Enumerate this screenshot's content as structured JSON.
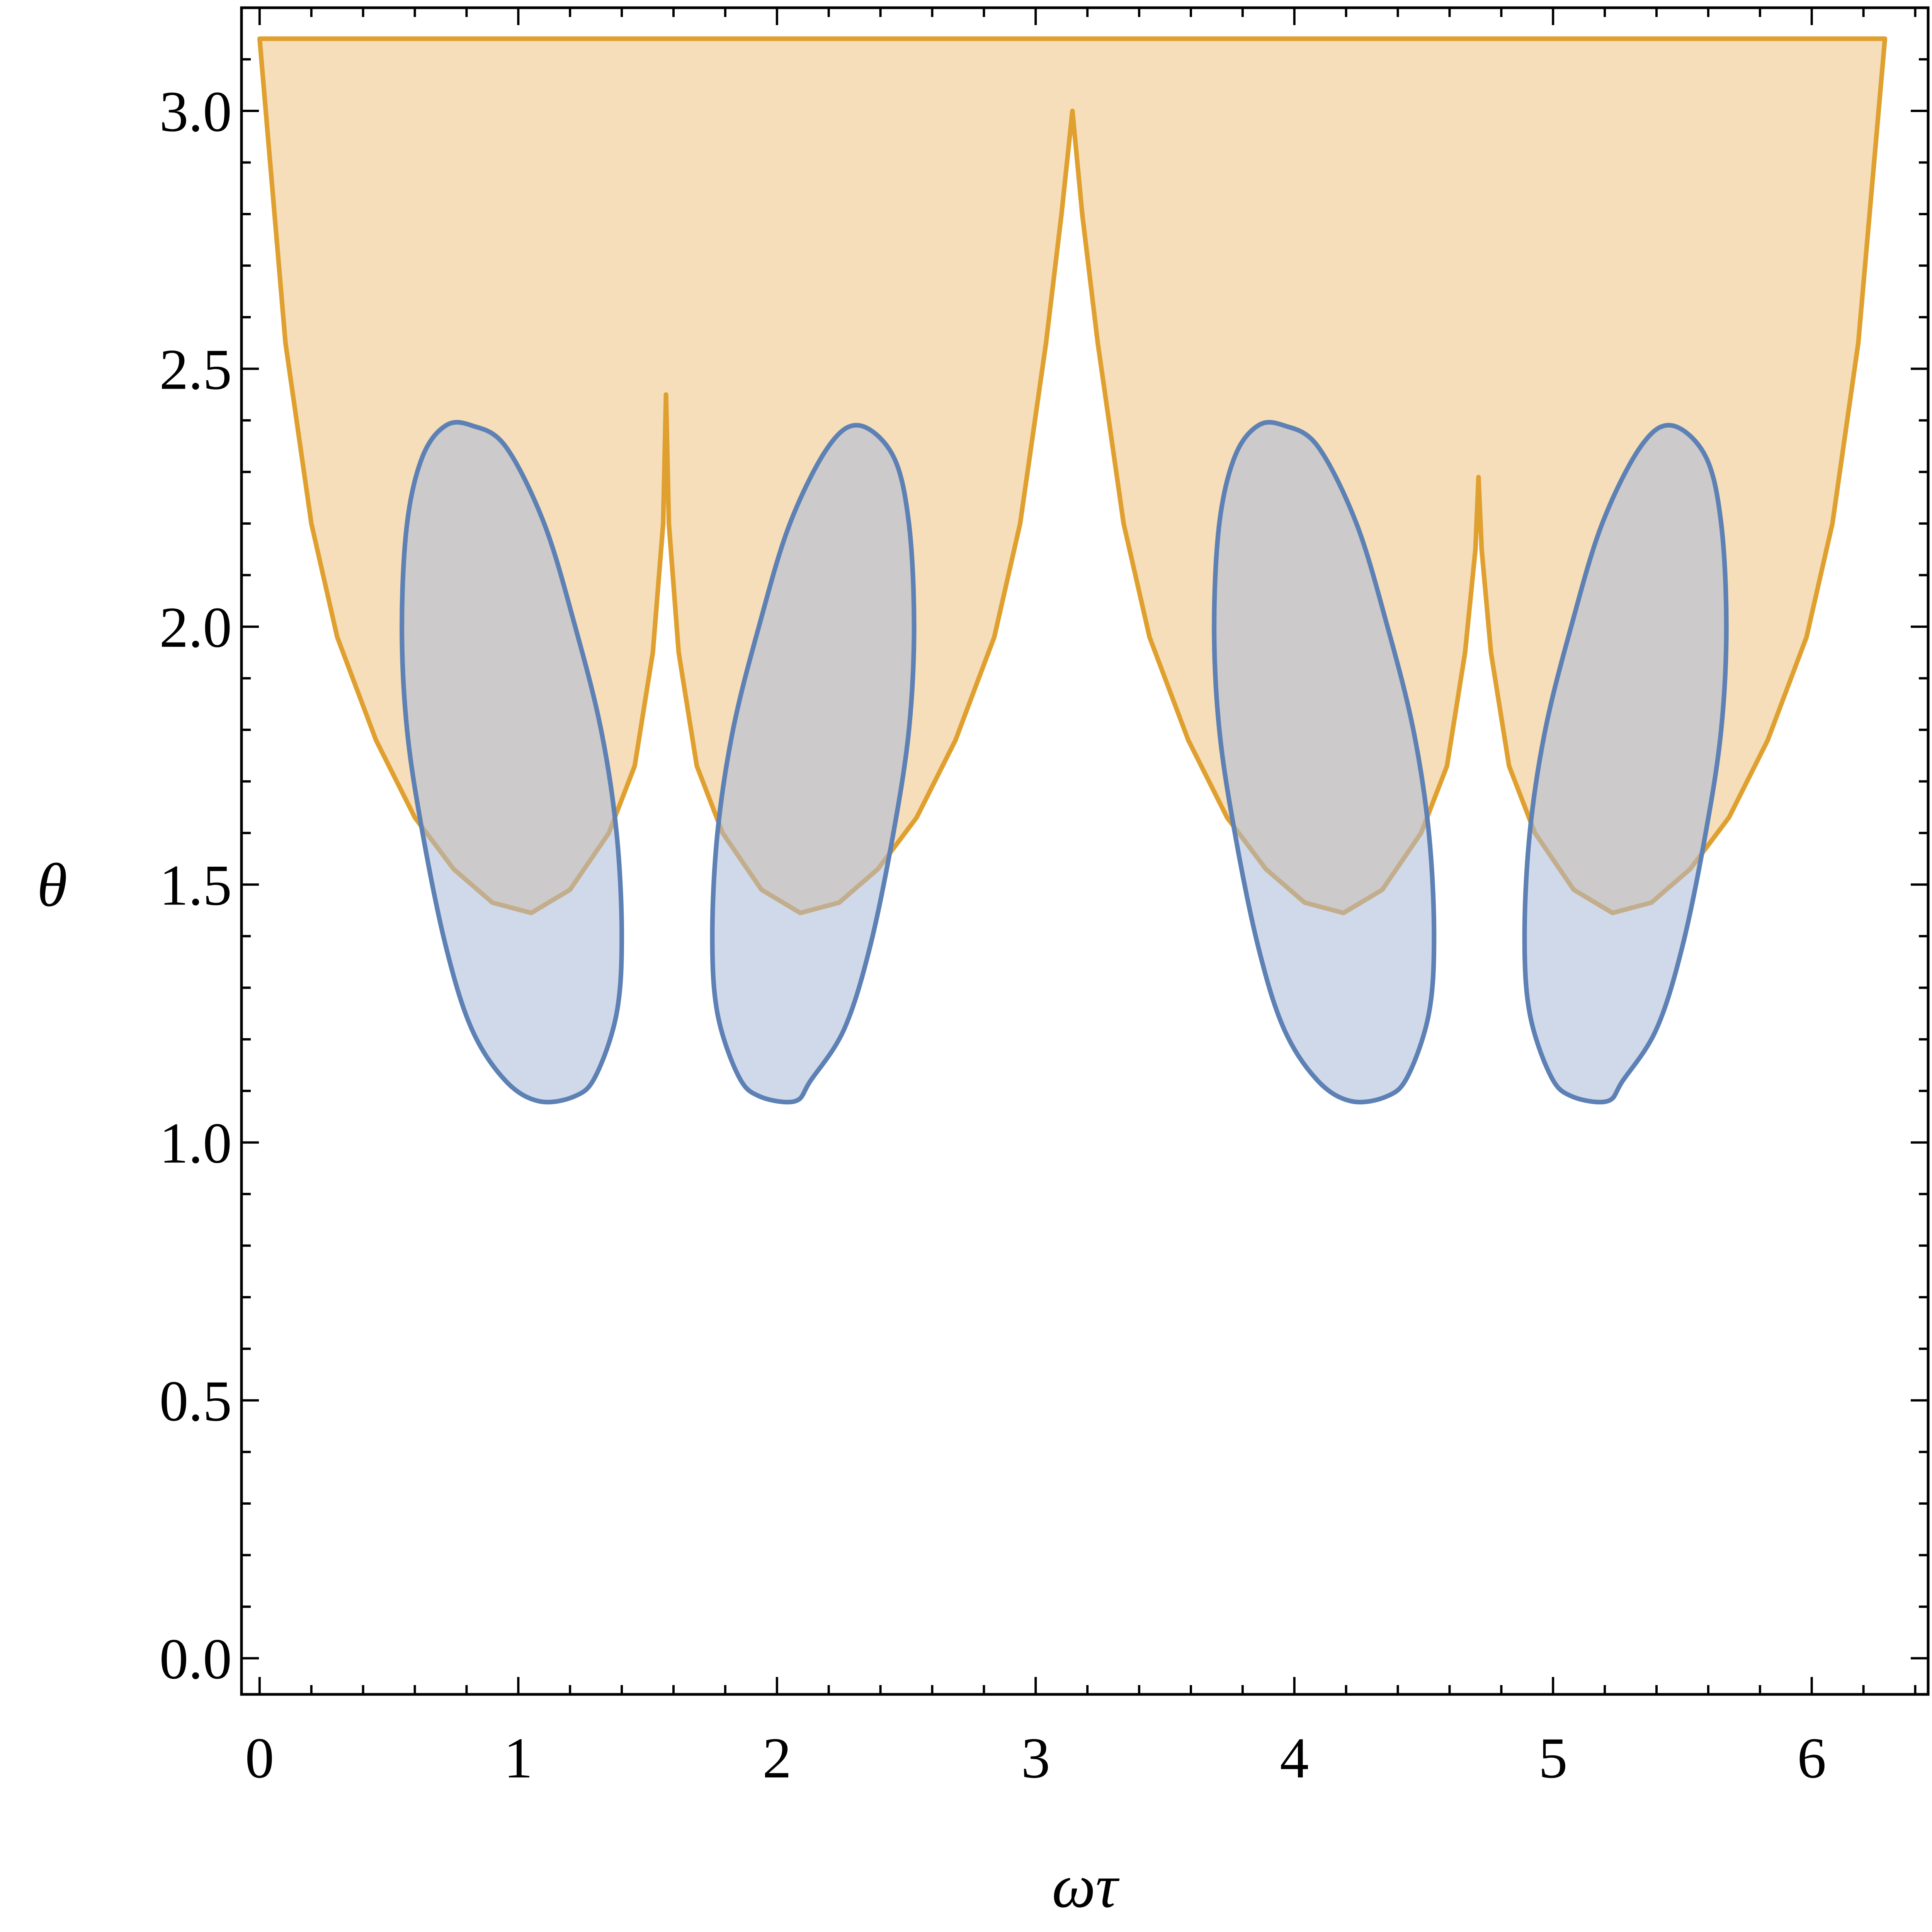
{
  "chart_data": {
    "type": "area",
    "xlabel": "ωτ",
    "ylabel": "θ",
    "xlim": [
      -0.07,
      6.45
    ],
    "ylim": [
      -0.07,
      3.2
    ],
    "x_ticks": [
      0,
      1,
      2,
      3,
      4,
      5,
      6
    ],
    "x_tick_labels": [
      "0",
      "1",
      "2",
      "3",
      "4",
      "5",
      "6"
    ],
    "y_ticks": [
      0.0,
      0.5,
      1.0,
      1.5,
      2.0,
      2.5,
      3.0
    ],
    "y_tick_labels": [
      "0.0",
      "0.5",
      "1.0",
      "1.5",
      "2.0",
      "2.5",
      "3.0"
    ],
    "grid": false,
    "legend": "none",
    "series": [
      {
        "color_stroke": "#e0a030",
        "color_fill": "#f5deb9",
        "shape": "region between top boundary θ = π and a lower scalloped boundary",
        "top_y": 3.14,
        "lower_boundary": [
          [
            0.0,
            3.14
          ],
          [
            0.1,
            2.55
          ],
          [
            0.2,
            2.2
          ],
          [
            0.3,
            1.98
          ],
          [
            0.45,
            1.78
          ],
          [
            0.6,
            1.63
          ],
          [
            0.75,
            1.53
          ],
          [
            0.9,
            1.465
          ],
          [
            1.05,
            1.445
          ],
          [
            1.2,
            1.49
          ],
          [
            1.35,
            1.6
          ],
          [
            1.45,
            1.73
          ],
          [
            1.52,
            1.95
          ],
          [
            1.56,
            2.2
          ],
          [
            1.571,
            2.45
          ],
          [
            1.582,
            2.2
          ],
          [
            1.62,
            1.95
          ],
          [
            1.69,
            1.73
          ],
          [
            1.79,
            1.6
          ],
          [
            1.94,
            1.49
          ],
          [
            2.09,
            1.445
          ],
          [
            2.24,
            1.465
          ],
          [
            2.39,
            1.53
          ],
          [
            2.54,
            1.63
          ],
          [
            2.69,
            1.78
          ],
          [
            2.84,
            1.98
          ],
          [
            2.94,
            2.2
          ],
          [
            3.04,
            2.55
          ],
          [
            3.1,
            2.8
          ],
          [
            3.142,
            3.0
          ],
          [
            3.18,
            2.8
          ],
          [
            3.24,
            2.55
          ],
          [
            3.34,
            2.2
          ],
          [
            3.44,
            1.98
          ],
          [
            3.59,
            1.78
          ],
          [
            3.74,
            1.63
          ],
          [
            3.89,
            1.53
          ],
          [
            4.04,
            1.465
          ],
          [
            4.19,
            1.445
          ],
          [
            4.34,
            1.49
          ],
          [
            4.49,
            1.6
          ],
          [
            4.59,
            1.73
          ],
          [
            4.66,
            1.95
          ],
          [
            4.7,
            2.15
          ],
          [
            4.712,
            2.29
          ],
          [
            4.724,
            2.15
          ],
          [
            4.76,
            1.95
          ],
          [
            4.83,
            1.73
          ],
          [
            4.93,
            1.6
          ],
          [
            5.08,
            1.49
          ],
          [
            5.23,
            1.445
          ],
          [
            5.38,
            1.465
          ],
          [
            5.53,
            1.53
          ],
          [
            5.68,
            1.63
          ],
          [
            5.83,
            1.78
          ],
          [
            5.98,
            1.98
          ],
          [
            6.08,
            2.2
          ],
          [
            6.18,
            2.55
          ],
          [
            6.283,
            3.14
          ]
        ]
      },
      {
        "color_stroke": "#5e81b5",
        "color_fill": "#aabad8",
        "fill_opacity": 0.55,
        "shape": "four closed loops",
        "loops": [
          [
            [
              0.82,
              2.39
            ],
            [
              0.95,
              2.35
            ],
            [
              1.1,
              2.2
            ],
            [
              1.22,
              2.0
            ],
            [
              1.32,
              1.8
            ],
            [
              1.38,
              1.6
            ],
            [
              1.4,
              1.4
            ],
            [
              1.38,
              1.25
            ],
            [
              1.3,
              1.13
            ],
            [
              1.22,
              1.09
            ],
            [
              1.08,
              1.08
            ],
            [
              0.95,
              1.12
            ],
            [
              0.82,
              1.22
            ],
            [
              0.72,
              1.38
            ],
            [
              0.63,
              1.6
            ],
            [
              0.57,
              1.8
            ],
            [
              0.55,
              2.0
            ],
            [
              0.57,
              2.2
            ],
            [
              0.63,
              2.33
            ],
            [
              0.72,
              2.39
            ]
          ],
          [
            [
              2.32,
              2.39
            ],
            [
              2.45,
              2.33
            ],
            [
              2.51,
              2.2
            ],
            [
              2.53,
              2.0
            ],
            [
              2.51,
              1.8
            ],
            [
              2.45,
              1.6
            ],
            [
              2.36,
              1.38
            ],
            [
              2.26,
              1.22
            ],
            [
              2.13,
              1.12
            ],
            [
              2.07,
              1.08
            ],
            [
              1.93,
              1.09
            ],
            [
              1.85,
              1.13
            ],
            [
              1.77,
              1.25
            ],
            [
              1.75,
              1.4
            ],
            [
              1.77,
              1.6
            ],
            [
              1.83,
              1.8
            ],
            [
              1.93,
              2.0
            ],
            [
              2.05,
              2.2
            ],
            [
              2.2,
              2.35
            ]
          ],
          [
            [
              3.96,
              2.39
            ],
            [
              4.09,
              2.35
            ],
            [
              4.24,
              2.2
            ],
            [
              4.36,
              2.0
            ],
            [
              4.46,
              1.8
            ],
            [
              4.52,
              1.6
            ],
            [
              4.54,
              1.4
            ],
            [
              4.52,
              1.25
            ],
            [
              4.44,
              1.13
            ],
            [
              4.36,
              1.09
            ],
            [
              4.22,
              1.08
            ],
            [
              4.09,
              1.12
            ],
            [
              3.96,
              1.22
            ],
            [
              3.86,
              1.38
            ],
            [
              3.77,
              1.6
            ],
            [
              3.71,
              1.8
            ],
            [
              3.69,
              2.0
            ],
            [
              3.71,
              2.2
            ],
            [
              3.77,
              2.33
            ],
            [
              3.86,
              2.39
            ]
          ],
          [
            [
              5.46,
              2.39
            ],
            [
              5.59,
              2.33
            ],
            [
              5.65,
              2.2
            ],
            [
              5.67,
              2.0
            ],
            [
              5.65,
              1.8
            ],
            [
              5.59,
              1.6
            ],
            [
              5.5,
              1.38
            ],
            [
              5.4,
              1.22
            ],
            [
              5.27,
              1.12
            ],
            [
              5.21,
              1.08
            ],
            [
              5.07,
              1.09
            ],
            [
              4.99,
              1.13
            ],
            [
              4.91,
              1.25
            ],
            [
              4.89,
              1.4
            ],
            [
              4.91,
              1.6
            ],
            [
              4.97,
              1.8
            ],
            [
              5.07,
              2.0
            ],
            [
              5.19,
              2.2
            ],
            [
              5.34,
              2.35
            ]
          ]
        ]
      }
    ]
  }
}
